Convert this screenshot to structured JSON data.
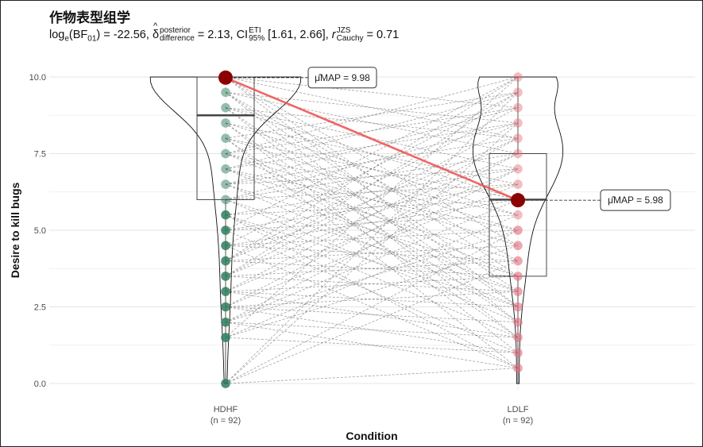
{
  "title": "作物表型组学",
  "subtitle": {
    "bf_prefix": "log",
    "bf_sub_e": "e",
    "bf_name": "(BF",
    "bf_sub": "01",
    "bf_value": ") = -22.56, ",
    "delta_symbol": "δ",
    "delta_sup": "posterior",
    "delta_sub": "difference",
    "delta_value": " = 2.13, CI",
    "ci_sup": "ETI",
    "ci_sub": "95%",
    "ci_value": " [1.61, 2.66], ",
    "r_symbol": "r",
    "r_sup": "JZS",
    "r_sub": "Cauchy",
    "r_value": " = 0.71"
  },
  "chart_data": {
    "type": "scatter",
    "subtype": "paired violin-box plot",
    "xlabel": "Condition",
    "ylabel": "Desire to kill bugs",
    "ylim": [
      0,
      10
    ],
    "yticks": [
      "0.0",
      "2.5",
      "5.0",
      "7.5",
      "10.0"
    ],
    "grid": true,
    "groups": [
      {
        "name": "HDHF",
        "n_label": "(n = 92)",
        "color": "#2e7d5b",
        "points": [
          0,
          1.5,
          2,
          2.5,
          3,
          3.5,
          4,
          4.5,
          5,
          5.5,
          6,
          6.5,
          7,
          7.5,
          8,
          8.5,
          9,
          9.5,
          10
        ],
        "box": {
          "q1": 6,
          "median": 8.75,
          "q3": 10,
          "whisker_low": 0,
          "whisker_high": 10
        },
        "map_value": 9.98,
        "map_label": "μ̂MAP = 9.98"
      },
      {
        "name": "LDLF",
        "n_label": "(n = 92)",
        "color": "#e36c7b",
        "points": [
          0.5,
          1,
          1.5,
          2,
          2.5,
          3,
          3.5,
          4,
          4.5,
          5,
          5.5,
          6,
          6.5,
          7,
          7.5,
          8,
          8.5,
          9,
          9.5,
          10
        ],
        "box": {
          "q1": 3.5,
          "median": 6,
          "q3": 7.5,
          "whisker_low": 0,
          "whisker_high": 10
        },
        "map_value": 5.98,
        "map_label": "μ̂MAP = 5.98"
      }
    ],
    "mean_line_color": "#f04c4c",
    "mean_point_color": "#8b0000"
  }
}
